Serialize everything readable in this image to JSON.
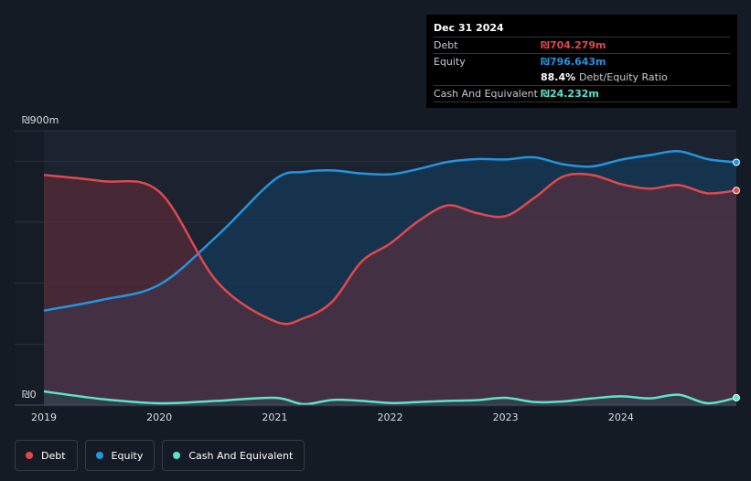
{
  "chart_data": {
    "type": "area",
    "y_axis_top_label": "₪900m",
    "y_axis_bottom_label": "₪0",
    "ylim": [
      0,
      900
    ],
    "xlim": [
      2019.0,
      2025.0
    ],
    "x_tick_labels": [
      "2019",
      "2020",
      "2021",
      "2022",
      "2023",
      "2024"
    ],
    "series": [
      {
        "name": "Debt",
        "color": "#e0484f",
        "x": [
          2019.0,
          2019.5,
          2020.0,
          2020.5,
          2021.0,
          2021.25,
          2021.5,
          2021.75,
          2022.0,
          2022.25,
          2022.5,
          2022.75,
          2023.0,
          2023.25,
          2023.5,
          2023.75,
          2024.0,
          2024.25,
          2024.5,
          2024.75,
          2025.0
        ],
        "values": [
          755,
          735,
          700,
          405,
          275,
          285,
          340,
          470,
          530,
          605,
          655,
          630,
          620,
          680,
          750,
          755,
          725,
          710,
          722,
          695,
          704.279
        ]
      },
      {
        "name": "Equity",
        "color": "#2394df",
        "x": [
          2019.0,
          2019.5,
          2020.0,
          2020.5,
          2021.0,
          2021.25,
          2021.5,
          2021.75,
          2022.0,
          2022.25,
          2022.5,
          2022.75,
          2023.0,
          2023.25,
          2023.5,
          2023.75,
          2024.0,
          2024.25,
          2024.5,
          2024.75,
          2025.0
        ],
        "values": [
          310,
          345,
          395,
          555,
          740,
          765,
          770,
          760,
          757,
          775,
          798,
          807,
          806,
          813,
          790,
          783,
          805,
          820,
          833,
          807,
          796.643
        ]
      },
      {
        "name": "Cash And Equivalent",
        "color": "#5de3cd",
        "x": [
          2019.0,
          2019.5,
          2020.0,
          2020.5,
          2021.0,
          2021.25,
          2021.5,
          2021.75,
          2022.0,
          2022.25,
          2022.5,
          2022.75,
          2023.0,
          2023.25,
          2023.5,
          2023.75,
          2024.0,
          2024.25,
          2024.5,
          2024.75,
          2025.0
        ],
        "values": [
          45,
          20,
          6,
          14,
          24,
          3,
          17,
          14,
          7,
          10,
          14,
          16,
          24,
          10,
          12,
          22,
          29,
          22,
          34,
          6,
          24.232
        ]
      }
    ]
  },
  "tooltip": {
    "date": "Dec 31 2024",
    "debt_label": "Debt",
    "debt_value": "₪704.279m",
    "equity_label": "Equity",
    "equity_value": "₪796.643m",
    "ratio_value": "88.4%",
    "ratio_label": "Debt/Equity Ratio",
    "cash_label": "Cash And Equivalent",
    "cash_value": "₪24.232m"
  },
  "legend": [
    {
      "label": "Debt",
      "color": "#e0484f"
    },
    {
      "label": "Equity",
      "color": "#2394df"
    },
    {
      "label": "Cash And Equivalent",
      "color": "#5de3cd"
    }
  ],
  "colors": {
    "debt": "#e0484f",
    "equity": "#2394df",
    "cash": "#5de3cd",
    "background": "#151b24"
  }
}
